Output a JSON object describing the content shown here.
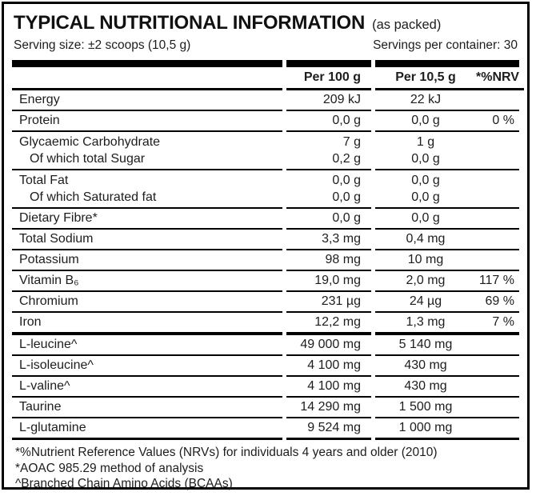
{
  "label_header": {
    "title": "TYPICAL NUTRITIONAL INFORMATION",
    "title_note": "(as packed)",
    "serving_size": "Serving size: ±2 scoops (10,5 g)",
    "servings_per_container": "Servings per container: 30"
  },
  "table": {
    "col_per100": "Per 100 g",
    "col_per_serving": "Per 10,5 g",
    "col_nrv": "*%NRV",
    "rows": [
      {
        "label": "Energy",
        "per100": "209 kJ",
        "per105": "22 kJ",
        "nrv": ""
      },
      {
        "label": "Protein",
        "per100": "0,0 g",
        "per105": "0,0 g",
        "nrv": "0 %"
      },
      {
        "label": "Glycaemic Carbohydrate",
        "sub_label": "Of which total Sugar",
        "per100": "7 g",
        "per100_sub": "0,2 g",
        "per105": "1 g",
        "per105_sub": "0,0 g",
        "nrv": ""
      },
      {
        "label": "Total Fat",
        "sub_label": "Of which Saturated fat",
        "per100": "0,0 g",
        "per100_sub": "0,0 g",
        "per105": "0,0 g",
        "per105_sub": "0,0 g",
        "nrv": ""
      },
      {
        "label": "Dietary Fibre*",
        "per100": "0,0 g",
        "per105": "0,0 g",
        "nrv": ""
      },
      {
        "label": "Total Sodium",
        "per100": "3,3 mg",
        "per105": "0,4 mg",
        "nrv": ""
      },
      {
        "label": "Potassium",
        "per100": "98 mg",
        "per105": "10 mg",
        "nrv": ""
      },
      {
        "label": "Vitamin B₆",
        "per100": "19,0 mg",
        "per105": "2,0 mg",
        "nrv": "117 %"
      },
      {
        "label": "Chromium",
        "per100": "231 µg",
        "per105": "24 µg",
        "nrv": "69 %"
      },
      {
        "label": "Iron",
        "per100": "12,2 mg",
        "per105": "1,3 mg",
        "nrv": "7 %"
      },
      {
        "label": "L-leucine^",
        "per100": "49 000 mg",
        "per105": "5 140 mg",
        "nrv": ""
      },
      {
        "label": "L-isoleucine^",
        "per100": "4 100 mg",
        "per105": "430 mg",
        "nrv": ""
      },
      {
        "label": "L-valine^",
        "per100": "4 100 mg",
        "per105": "430 mg",
        "nrv": ""
      },
      {
        "label": "Taurine",
        "per100": "14 290 mg",
        "per105": "1 500 mg",
        "nrv": ""
      },
      {
        "label": "L-glutamine",
        "per100": "9 524 mg",
        "per105": "1 000 mg",
        "nrv": ""
      }
    ]
  },
  "footnotes": [
    "*%Nutrient Reference Values (NRVs) for individuals 4 years and older (2010)",
    "*AOAC 985.29 method of analysis",
    "^Branched Chain Amino Acids (BCAAs)"
  ],
  "colors": {
    "border": "#000000",
    "header_bar": "#000000",
    "text": "#1d1d1d",
    "background": "#ffffff"
  }
}
